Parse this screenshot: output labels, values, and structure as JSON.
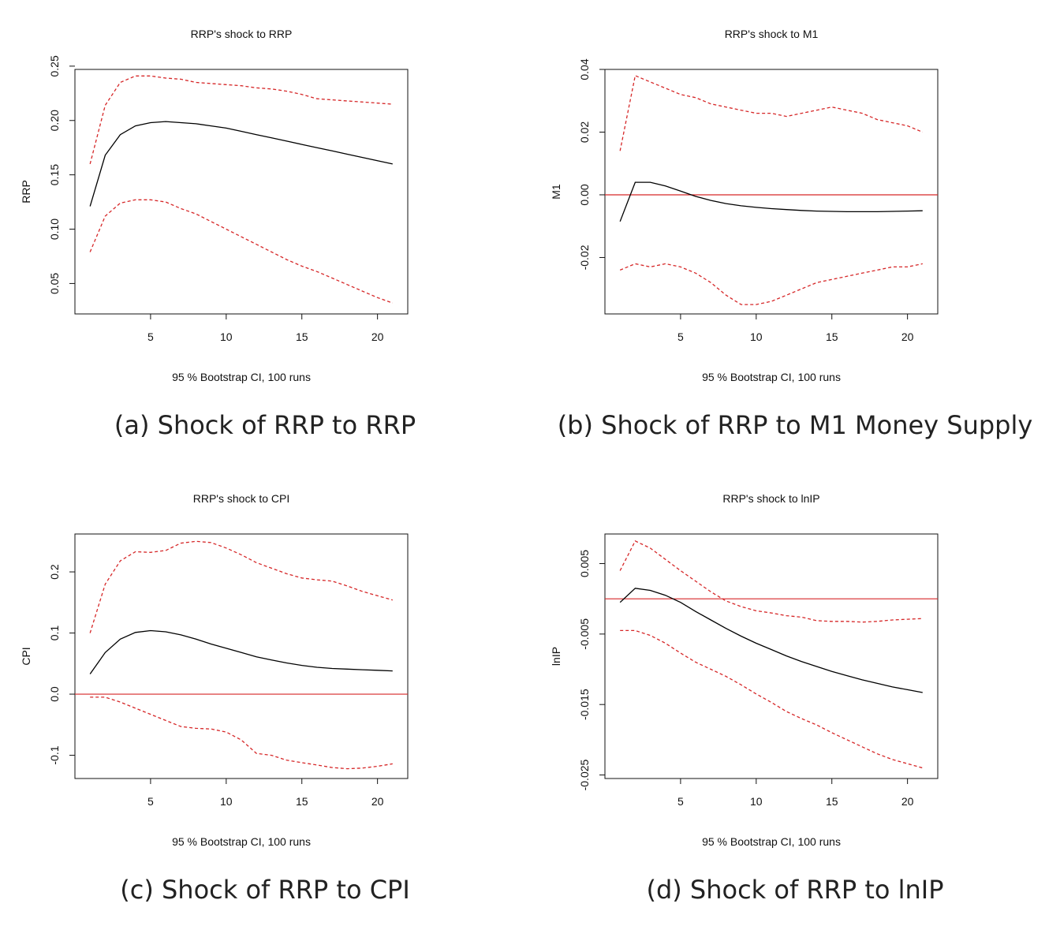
{
  "figure": {
    "panels": [
      {
        "caption": "(a) Shock of RRP to RRP"
      },
      {
        "caption": "(b) Shock of RRP to M1 Money Supply"
      },
      {
        "caption": "(c) Shock of RRP to CPI"
      },
      {
        "caption": "(d) Shock of RRP to lnIP"
      }
    ]
  },
  "colors": {
    "response": "#000000",
    "ci": "#d62728",
    "zero_line": "#d62728"
  },
  "chart_data": [
    {
      "type": "line",
      "title": "RRP's shock to RRP",
      "xlabel": "95 % Bootstrap CI,  100 runs",
      "ylabel": "RRP",
      "xlim": [
        0,
        22
      ],
      "ylim": [
        0.022,
        0.247
      ],
      "xticks": [
        "5",
        "10",
        "15",
        "20"
      ],
      "yticks": [
        "0.05",
        "0.10",
        "0.15",
        "0.20",
        "0.25"
      ],
      "zero_line": false,
      "x": [
        1,
        2,
        3,
        4,
        5,
        6,
        7,
        8,
        9,
        10,
        11,
        12,
        13,
        14,
        15,
        16,
        17,
        18,
        19,
        20,
        21
      ],
      "series": [
        {
          "values": [
            0.121,
            0.168,
            0.187,
            0.195,
            0.198,
            0.199,
            0.198,
            0.197,
            0.195,
            0.193,
            0.19,
            0.187,
            0.184,
            0.181,
            0.178,
            0.175,
            0.172,
            0.169,
            0.166,
            0.163,
            0.16
          ]
        },
        {
          "values": [
            0.16,
            0.214,
            0.235,
            0.241,
            0.241,
            0.239,
            0.238,
            0.235,
            0.234,
            0.233,
            0.232,
            0.23,
            0.229,
            0.227,
            0.224,
            0.22,
            0.219,
            0.218,
            0.217,
            0.216,
            0.215
          ]
        },
        {
          "values": [
            0.079,
            0.112,
            0.124,
            0.127,
            0.127,
            0.125,
            0.119,
            0.114,
            0.107,
            0.1,
            0.093,
            0.086,
            0.079,
            0.072,
            0.066,
            0.061,
            0.055,
            0.049,
            0.043,
            0.037,
            0.032
          ]
        }
      ]
    },
    {
      "type": "line",
      "title": "RRP's shock to M1",
      "xlabel": "95 % Bootstrap CI,  100 runs",
      "ylabel": "M1",
      "xlim": [
        0,
        22
      ],
      "ylim": [
        -0.038,
        0.04
      ],
      "xticks": [
        "5",
        "10",
        "15",
        "20"
      ],
      "yticks": [
        "-0.02",
        "0.00",
        "0.02",
        "0.04"
      ],
      "zero_line": true,
      "x": [
        1,
        2,
        3,
        4,
        5,
        6,
        7,
        8,
        9,
        10,
        11,
        12,
        13,
        14,
        15,
        16,
        17,
        18,
        19,
        20,
        21
      ],
      "series": [
        {
          "values": [
            -0.0085,
            0.004,
            0.004,
            0.0028,
            0.0012,
            -0.0005,
            -0.0018,
            -0.0028,
            -0.0035,
            -0.004,
            -0.0044,
            -0.0047,
            -0.005,
            -0.0052,
            -0.0053,
            -0.0054,
            -0.0054,
            -0.0054,
            -0.0053,
            -0.0052,
            -0.0051
          ]
        },
        {
          "values": [
            0.014,
            0.038,
            0.036,
            0.034,
            0.032,
            0.031,
            0.029,
            0.028,
            0.027,
            0.026,
            0.026,
            0.025,
            0.026,
            0.027,
            0.028,
            0.027,
            0.026,
            0.024,
            0.023,
            0.022,
            0.02
          ]
        },
        {
          "values": [
            -0.024,
            -0.022,
            -0.023,
            -0.022,
            -0.023,
            -0.025,
            -0.028,
            -0.032,
            -0.035,
            -0.035,
            -0.034,
            -0.032,
            -0.03,
            -0.028,
            -0.027,
            -0.026,
            -0.025,
            -0.024,
            -0.023,
            -0.023,
            -0.022
          ]
        }
      ]
    },
    {
      "type": "line",
      "title": "RRP's shock to CPI",
      "xlabel": "95 % Bootstrap CI,  100 runs",
      "ylabel": "CPI",
      "xlim": [
        0,
        22
      ],
      "ylim": [
        -0.138,
        0.262
      ],
      "xticks": [
        "5",
        "10",
        "15",
        "20"
      ],
      "yticks": [
        "-0.1",
        "0.0",
        "0.1",
        "0.2"
      ],
      "zero_line": true,
      "x": [
        1,
        2,
        3,
        4,
        5,
        6,
        7,
        8,
        9,
        10,
        11,
        12,
        13,
        14,
        15,
        16,
        17,
        18,
        19,
        20,
        21
      ],
      "series": [
        {
          "values": [
            0.033,
            0.068,
            0.09,
            0.101,
            0.104,
            0.102,
            0.097,
            0.09,
            0.082,
            0.075,
            0.068,
            0.061,
            0.056,
            0.051,
            0.047,
            0.044,
            0.042,
            0.041,
            0.04,
            0.039,
            0.038
          ]
        },
        {
          "values": [
            0.1,
            0.18,
            0.218,
            0.233,
            0.232,
            0.235,
            0.247,
            0.25,
            0.248,
            0.239,
            0.228,
            0.215,
            0.206,
            0.197,
            0.19,
            0.187,
            0.185,
            0.177,
            0.168,
            0.161,
            0.154
          ]
        },
        {
          "values": [
            -0.005,
            -0.005,
            -0.013,
            -0.023,
            -0.033,
            -0.043,
            -0.053,
            -0.056,
            -0.057,
            -0.062,
            -0.075,
            -0.097,
            -0.1,
            -0.108,
            -0.112,
            -0.116,
            -0.12,
            -0.122,
            -0.121,
            -0.118,
            -0.114
          ]
        }
      ]
    },
    {
      "type": "line",
      "title": "RRP's shock to lnIP",
      "xlabel": "95 % Bootstrap CI,  100 runs",
      "ylabel": "lnIP",
      "xlim": [
        0,
        22
      ],
      "ylim": [
        -0.0255,
        0.0092
      ],
      "xticks": [
        "5",
        "10",
        "15",
        "20"
      ],
      "yticks": [
        "0.005",
        "-0.005",
        "-0.015",
        "-0.025"
      ],
      "zero_line": true,
      "x": [
        1,
        2,
        3,
        4,
        5,
        6,
        7,
        8,
        9,
        10,
        11,
        12,
        13,
        14,
        15,
        16,
        17,
        18,
        19,
        20,
        21
      ],
      "series": [
        {
          "values": [
            -0.0005,
            0.0015,
            0.0012,
            0.0005,
            -0.0005,
            -0.0018,
            -0.003,
            -0.0042,
            -0.0053,
            -0.0063,
            -0.0072,
            -0.0081,
            -0.0089,
            -0.0096,
            -0.0103,
            -0.0109,
            -0.0115,
            -0.012,
            -0.0125,
            -0.0129,
            -0.0133
          ]
        },
        {
          "values": [
            0.004,
            0.0082,
            0.0072,
            0.0056,
            0.004,
            0.0025,
            0.001,
            -0.0003,
            -0.0011,
            -0.0017,
            -0.002,
            -0.0024,
            -0.0026,
            -0.0031,
            -0.0032,
            -0.0032,
            -0.0033,
            -0.0032,
            -0.003,
            -0.0029,
            -0.0028
          ]
        },
        {
          "values": [
            -0.0045,
            -0.0045,
            -0.0052,
            -0.0063,
            -0.0077,
            -0.009,
            -0.01,
            -0.011,
            -0.0122,
            -0.0135,
            -0.0147,
            -0.016,
            -0.017,
            -0.0179,
            -0.019,
            -0.02,
            -0.021,
            -0.022,
            -0.0228,
            -0.0234,
            -0.024
          ]
        }
      ]
    }
  ]
}
